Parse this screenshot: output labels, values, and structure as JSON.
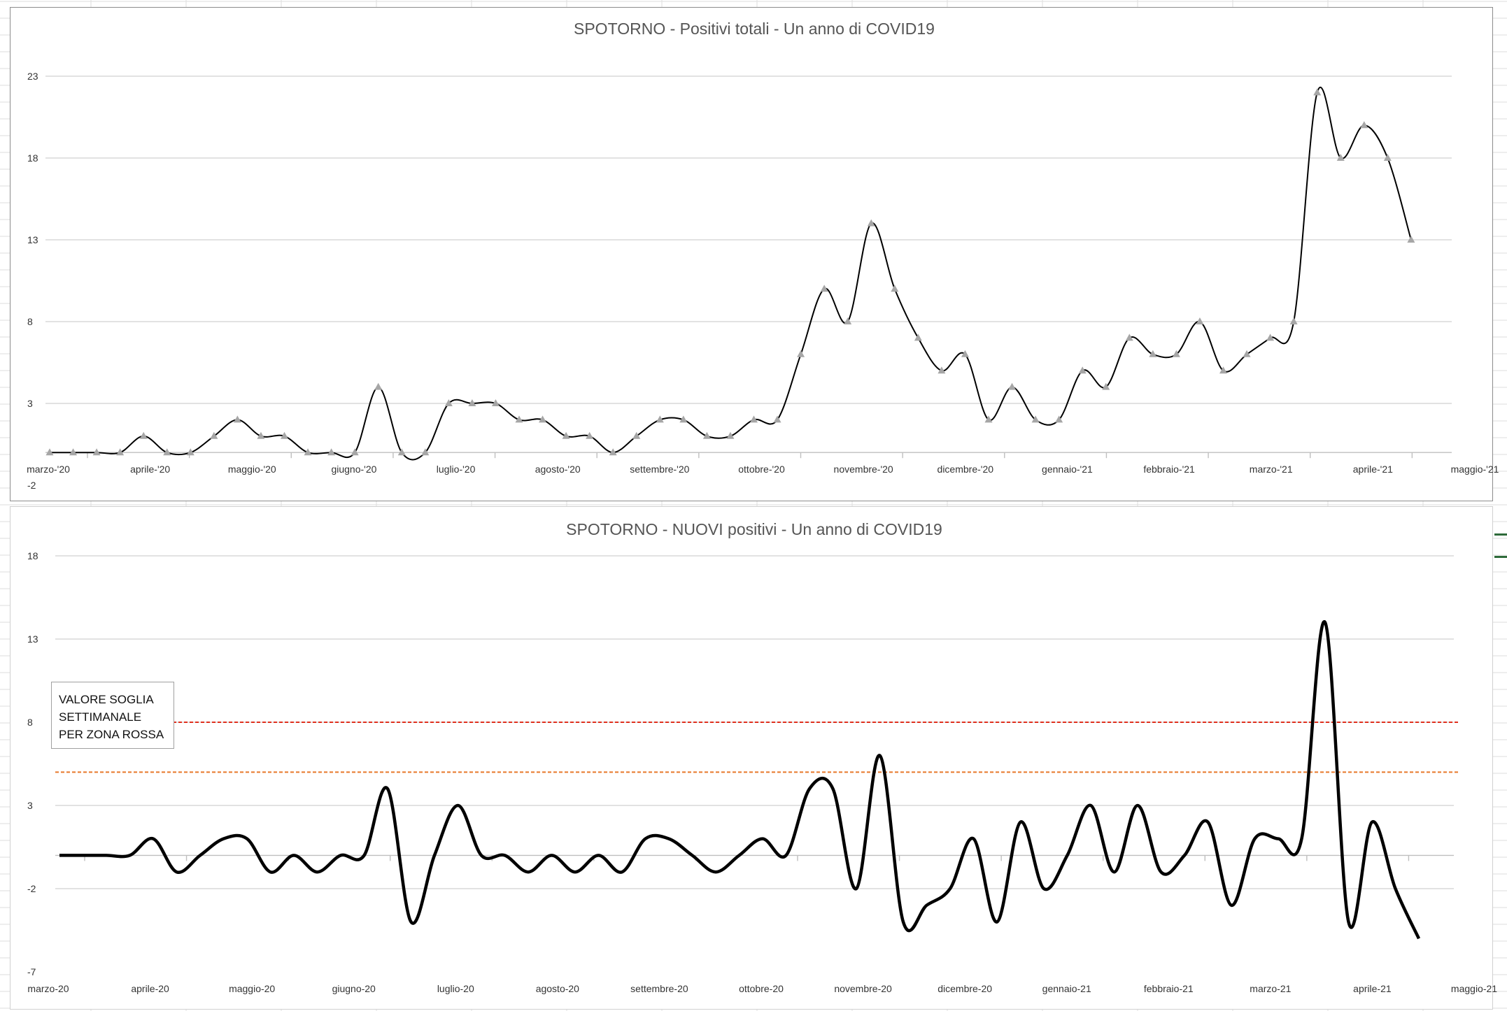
{
  "chart_data": [
    {
      "type": "line",
      "title": "SPOTORNO - Positivi totali - Un anno di COVID19",
      "xlabel": "",
      "ylabel": "",
      "ylim": [
        -2,
        23
      ],
      "yticks": [
        "-2",
        "3",
        "8",
        "13",
        "18",
        "23"
      ],
      "month_labels": [
        "marzo-'20",
        "aprile-'20",
        "maggio-'20",
        "giugno-'20",
        "luglio-'20",
        "agosto-'20",
        "settembre-'20",
        "ottobre-'20",
        "novembre-'20",
        "dicembre-'20",
        "gennaio-'21",
        "febbraio-'21",
        "marzo-'21",
        "aprile-'21",
        "maggio-'21"
      ],
      "x_unit": "weeks since start",
      "values": [
        0,
        0,
        0,
        0,
        1,
        0,
        0,
        1,
        2,
        1,
        1,
        0,
        0,
        0,
        4,
        0,
        0,
        3,
        3,
        3,
        2,
        2,
        1,
        1,
        0,
        1,
        2,
        2,
        1,
        1,
        2,
        2,
        6,
        10,
        8,
        14,
        10,
        7,
        5,
        6,
        2,
        4,
        2,
        2,
        5,
        4,
        7,
        6,
        6,
        8,
        5,
        6,
        7,
        8,
        22,
        18,
        20,
        18,
        13
      ],
      "markers": "triangle",
      "grid": true
    },
    {
      "type": "line",
      "title": "SPOTORNO - NUOVI positivi - Un anno di COVID19",
      "xlabel": "",
      "ylabel": "",
      "ylim": [
        -7,
        18
      ],
      "yticks": [
        "-7",
        "-2",
        "3",
        "8",
        "13",
        "18"
      ],
      "month_labels": [
        "marzo-20",
        "aprile-20",
        "maggio-20",
        "giugno-20",
        "luglio-20",
        "agosto-20",
        "settembre-20",
        "ottobre-20",
        "novembre-20",
        "dicembre-20",
        "gennaio-21",
        "febbraio-21",
        "marzo-21",
        "aprile-21",
        "maggio-21"
      ],
      "values": [
        0,
        0,
        0,
        0,
        1,
        -1,
        0,
        1,
        1,
        -1,
        0,
        -1,
        0,
        0,
        4,
        -4,
        0,
        3,
        0,
        0,
        -1,
        0,
        -1,
        0,
        -1,
        1,
        1,
        0,
        -1,
        0,
        1,
        0,
        4,
        4,
        -2,
        6,
        -4,
        -3,
        -2,
        1,
        -4,
        2,
        -2,
        0,
        3,
        -1,
        3,
        -1,
        0,
        2,
        -3,
        1,
        1,
        1,
        14,
        -4,
        2,
        -2,
        -5
      ],
      "threshold_lines": [
        {
          "value": 8,
          "color": "#e0301e"
        },
        {
          "value": 5,
          "color": "#e8782a"
        }
      ],
      "annotation": [
        "VALORE SOGLIA",
        "SETTIMANALE",
        "PER ZONA ROSSA"
      ],
      "grid": true
    }
  ],
  "colors": {
    "line": "#000000",
    "marker": "#a6a6a6",
    "grid": "#d9d9d9",
    "threshold_red": "#e0301e",
    "threshold_orange": "#e8782a"
  }
}
